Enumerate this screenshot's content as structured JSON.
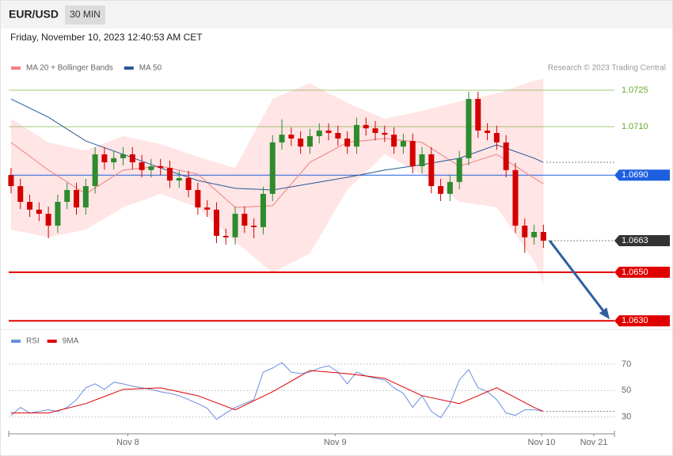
{
  "header": {
    "symbol": "EUR/USD",
    "interval": "30 MIN",
    "timestamp": "Friday, November 10, 2023 12:40:53 AM CET"
  },
  "chart_data": [
    {
      "type": "candlestick",
      "credit": "Research © 2023 Trading Central",
      "xlim": [
        -0.25,
        64.6
      ],
      "ylim": [
        1.06268,
        1.07312
      ],
      "up_color": "#2e8b2e",
      "down_color": "#d40000",
      "x": [
        0,
        1,
        2,
        3,
        4,
        5,
        6,
        7,
        8,
        9,
        10,
        11,
        12,
        13,
        14,
        15,
        16,
        17,
        18,
        19,
        20,
        21,
        22,
        23,
        24,
        25,
        26,
        27,
        28,
        29,
        30,
        31,
        32,
        33,
        34,
        35,
        36,
        37,
        38,
        39,
        40,
        41,
        42,
        43,
        44,
        45,
        46,
        47,
        48,
        49,
        50,
        51,
        52,
        53,
        54,
        55,
        56,
        57
      ],
      "open": [
        1.069,
        1.06855,
        1.0679,
        1.06758,
        1.06741,
        1.06692,
        1.0679,
        1.06839,
        1.06767,
        1.06855,
        1.06986,
        1.06953,
        1.0697,
        1.06986,
        1.06953,
        1.06921,
        1.06937,
        1.0693,
        1.06878,
        1.06888,
        1.06839,
        1.06767,
        1.06758,
        1.0665,
        1.06644,
        1.06741,
        1.06692,
        1.06686,
        1.06823,
        1.07035,
        1.07067,
        1.07051,
        1.07018,
        1.07061,
        1.07084,
        1.07074,
        1.07051,
        1.07018,
        1.07107,
        1.07093,
        1.07074,
        1.07067,
        1.07018,
        1.07041,
        1.06937,
        1.06986,
        1.06855,
        1.06823,
        1.06872,
        1.0697,
        1.07214,
        1.07084,
        1.07074,
        1.07035,
        1.06921,
        1.06692,
        1.06644,
        1.06666
      ],
      "high": [
        1.0693,
        1.06885,
        1.0682,
        1.06788,
        1.06771,
        1.0682,
        1.06869,
        1.06869,
        1.06885,
        1.07016,
        1.07016,
        1.07,
        1.07016,
        1.07016,
        1.06983,
        1.06967,
        1.06967,
        1.0696,
        1.06918,
        1.06918,
        1.06869,
        1.06797,
        1.06788,
        1.0668,
        1.06771,
        1.06771,
        1.06722,
        1.06853,
        1.07065,
        1.0713,
        1.07097,
        1.07081,
        1.07091,
        1.07114,
        1.07114,
        1.07104,
        1.07081,
        1.07137,
        1.07137,
        1.07123,
        1.07104,
        1.07097,
        1.07071,
        1.07071,
        1.07016,
        1.07016,
        1.06885,
        1.06902,
        1.07,
        1.07244,
        1.07244,
        1.07114,
        1.07104,
        1.07065,
        1.06951,
        1.06722,
        1.06696,
        1.06696
      ],
      "low": [
        1.06825,
        1.0676,
        1.06728,
        1.06711,
        1.0664,
        1.06662,
        1.0676,
        1.06737,
        1.06737,
        1.06825,
        1.06923,
        1.06923,
        1.0694,
        1.06923,
        1.06891,
        1.06891,
        1.069,
        1.06848,
        1.06848,
        1.06809,
        1.06737,
        1.06728,
        1.0662,
        1.06614,
        1.06614,
        1.06662,
        1.0664,
        1.06656,
        1.06793,
        1.07005,
        1.07021,
        1.06988,
        1.06988,
        1.07031,
        1.07044,
        1.07021,
        1.06988,
        1.06988,
        1.07063,
        1.07044,
        1.07037,
        1.06988,
        1.06988,
        1.06907,
        1.06907,
        1.06825,
        1.06793,
        1.06793,
        1.06842,
        1.0694,
        1.07054,
        1.07044,
        1.07005,
        1.06891,
        1.06662,
        1.0658,
        1.06614,
        1.066
      ],
      "close": [
        1.06855,
        1.0679,
        1.06758,
        1.06741,
        1.06692,
        1.0679,
        1.06839,
        1.06767,
        1.06855,
        1.06986,
        1.06953,
        1.0697,
        1.06986,
        1.06953,
        1.06921,
        1.06937,
        1.0693,
        1.06878,
        1.06888,
        1.06839,
        1.06767,
        1.06758,
        1.0665,
        1.06644,
        1.06741,
        1.06692,
        1.06686,
        1.06823,
        1.07035,
        1.07067,
        1.07051,
        1.07018,
        1.07061,
        1.07084,
        1.07074,
        1.07051,
        1.07018,
        1.07107,
        1.07093,
        1.07074,
        1.07067,
        1.07018,
        1.07041,
        1.06937,
        1.06986,
        1.06855,
        1.06823,
        1.06872,
        1.0697,
        1.07214,
        1.07084,
        1.07074,
        1.07035,
        1.06921,
        1.06692,
        1.06644,
        1.06666,
        1.0663
      ],
      "series": [
        {
          "name": "MA 20 + Bollinger Bands",
          "color": "#f08080",
          "band_color": "#ffdcdc",
          "x": [
            0,
            4,
            8,
            12,
            16,
            20,
            24,
            28,
            32,
            36,
            40,
            44,
            48,
            52,
            56,
            57
          ],
          "values": [
            1.07035,
            1.06921,
            1.06823,
            1.06921,
            1.06937,
            1.06904,
            1.06767,
            1.06774,
            1.06953,
            1.07035,
            1.07051,
            1.07035,
            1.06937,
            1.06986,
            1.06888,
            1.06865
          ],
          "upper": [
            1.07133,
            1.07035,
            1.07002,
            1.07061,
            1.07028,
            1.06976,
            1.0693,
            1.07214,
            1.07279,
            1.07198,
            1.07133,
            1.07165,
            1.07204,
            1.07237,
            1.07289,
            1.07296
          ],
          "lower": [
            1.06676,
            1.06644,
            1.06676,
            1.06767,
            1.06823,
            1.06767,
            1.06627,
            1.06497,
            1.06578,
            1.06839,
            1.06986,
            1.06904,
            1.0679,
            1.06767,
            1.06546,
            1.06454
          ]
        },
        {
          "name": "MA 50",
          "color": "#2b5797",
          "x": [
            0,
            4,
            8,
            12,
            16,
            20,
            24,
            28,
            32,
            36,
            40,
            44,
            48,
            52,
            56,
            57
          ],
          "values": [
            1.07214,
            1.07139,
            1.07041,
            1.06986,
            1.0693,
            1.06878,
            1.06846,
            1.06839,
            1.06865,
            1.06891,
            1.06921,
            1.06943,
            1.0697,
            1.07025,
            1.0697,
            1.06953
          ]
        }
      ],
      "levels": [
        {
          "value": 1.0725,
          "label": "1.0725",
          "color": "#6aaa2a",
          "tag": false
        },
        {
          "value": 1.071,
          "label": "1.0710",
          "color": "#6aaa2a",
          "tag": false
        },
        {
          "value": 1.069,
          "label": "1.0690",
          "color": "#1e5fe0",
          "tag": true
        },
        {
          "value": 1.0663,
          "label": "1.0663",
          "color": "#333333",
          "tag": true
        },
        {
          "value": 1.065,
          "label": "1.0650",
          "color": "#e00000",
          "tag": true
        },
        {
          "value": 1.063,
          "label": "1.0630",
          "color": "#e00000",
          "tag": true
        }
      ]
    },
    {
      "type": "line",
      "xlim": [
        -0.25,
        64.6
      ],
      "ylim": [
        19,
        94
      ],
      "yticks": [
        30,
        50,
        70
      ],
      "xticks": [
        {
          "value": 12.5,
          "label": "Nov 8"
        },
        {
          "value": 34.7,
          "label": "Nov 9"
        },
        {
          "value": 56.8,
          "label": "Nov 10"
        },
        {
          "value": 62.4,
          "label": "Nov 21"
        }
      ],
      "series": [
        {
          "name": "RSI",
          "color": "#6b8fe0",
          "x": [
            0,
            1,
            2,
            3,
            4,
            5,
            6,
            7,
            8,
            9,
            10,
            11,
            12,
            13,
            14,
            15,
            16,
            17,
            18,
            19,
            20,
            21,
            22,
            23,
            24,
            25,
            26,
            27,
            28,
            29,
            30,
            31,
            32,
            33,
            34,
            35,
            36,
            37,
            38,
            39,
            40,
            41,
            42,
            43,
            44,
            45,
            46,
            47,
            48,
            49,
            50,
            51,
            52,
            53,
            54,
            55,
            56,
            57
          ],
          "values": [
            31.2,
            37.2,
            33.0,
            34.2,
            35.4,
            34.2,
            37.2,
            43.1,
            52.1,
            55.1,
            50.9,
            56.3,
            55.1,
            53.3,
            52.1,
            50.9,
            49.1,
            47.9,
            46.1,
            43.1,
            40.1,
            36.6,
            28.2,
            33.0,
            37.2,
            40.1,
            43.1,
            64.0,
            67.0,
            71.2,
            64.0,
            62.8,
            64.0,
            67.0,
            68.8,
            64.0,
            55.1,
            64.0,
            61.0,
            59.3,
            58.1,
            52.1,
            47.9,
            37.2,
            46.1,
            34.2,
            29.4,
            40.1,
            58.1,
            65.8,
            52.1,
            49.1,
            43.1,
            33.0,
            31.2,
            35.4,
            35.4,
            34.2
          ]
        },
        {
          "name": "9MA",
          "color": "#e00000",
          "x": [
            0,
            4,
            8,
            12,
            16,
            20,
            24,
            28,
            32,
            36,
            40,
            44,
            48,
            52,
            56,
            57
          ],
          "values": [
            33.0,
            33.0,
            40.1,
            50.9,
            52.1,
            46.1,
            35.4,
            49.1,
            65.2,
            62.8,
            59.3,
            46.1,
            40.1,
            52.1,
            37.2,
            34.2
          ]
        }
      ]
    }
  ]
}
